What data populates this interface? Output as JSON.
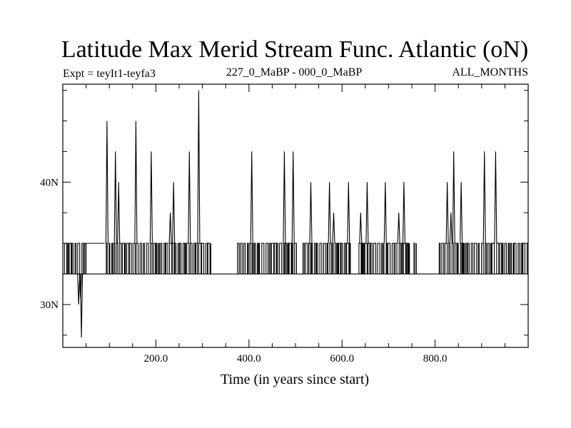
{
  "chart_data": {
    "type": "line",
    "title": "Latitude Max Merid Stream Func. Atlantic (oN)",
    "subtitle_left": "Expt = teyIt1-teyfa3",
    "subtitle_center": "227_0_MaBP - 000_0_MaBP",
    "subtitle_right": "ALL_MONTHS",
    "xlabel": "Time (in years since start)",
    "ylabel": "",
    "xlim": [
      0,
      1000
    ],
    "ylim": [
      26.5,
      48
    ],
    "x_ticks": [
      {
        "value": 200,
        "label": "200.0"
      },
      {
        "value": 400,
        "label": "400.0"
      },
      {
        "value": 600,
        "label": "600.0"
      },
      {
        "value": 800,
        "label": "800.0"
      }
    ],
    "y_ticks": [
      {
        "value": 30,
        "label": "30N"
      },
      {
        "value": 40,
        "label": "40N"
      }
    ],
    "levels": {
      "low": 32.5,
      "high": 35.0
    },
    "spikes": [
      {
        "x": 34,
        "y": 30.0
      },
      {
        "x": 38,
        "y": 30.5
      },
      {
        "x": 40,
        "y": 27.3
      },
      {
        "x": 95,
        "y": 45.0
      },
      {
        "x": 113,
        "y": 42.5
      },
      {
        "x": 120,
        "y": 40.0
      },
      {
        "x": 157,
        "y": 45.0
      },
      {
        "x": 190,
        "y": 42.5
      },
      {
        "x": 231,
        "y": 37.5
      },
      {
        "x": 238,
        "y": 40.0
      },
      {
        "x": 272,
        "y": 42.5
      },
      {
        "x": 292,
        "y": 47.5
      },
      {
        "x": 406,
        "y": 42.5
      },
      {
        "x": 476,
        "y": 42.5
      },
      {
        "x": 495,
        "y": 42.5
      },
      {
        "x": 533,
        "y": 40.0
      },
      {
        "x": 573,
        "y": 40.0
      },
      {
        "x": 582,
        "y": 37.5
      },
      {
        "x": 614,
        "y": 40.0
      },
      {
        "x": 640,
        "y": 37.5
      },
      {
        "x": 654,
        "y": 40.0
      },
      {
        "x": 693,
        "y": 40.0
      },
      {
        "x": 722,
        "y": 37.5
      },
      {
        "x": 733,
        "y": 40.0
      },
      {
        "x": 826,
        "y": 40.0
      },
      {
        "x": 834,
        "y": 37.5
      },
      {
        "x": 840,
        "y": 42.5
      },
      {
        "x": 856,
        "y": 40.0
      },
      {
        "x": 906,
        "y": 42.5
      },
      {
        "x": 930,
        "y": 42.5
      }
    ],
    "oscillation_segments": [
      {
        "x_start": 0,
        "x_end": 50
      },
      {
        "x_start": 90,
        "x_end": 318
      },
      {
        "x_start": 372,
        "x_end": 502
      },
      {
        "x_start": 512,
        "x_end": 618
      },
      {
        "x_start": 633,
        "x_end": 745
      },
      {
        "x_start": 753,
        "x_end": 760
      },
      {
        "x_start": 806,
        "x_end": 1000
      }
    ],
    "high_plateaus": [
      {
        "x_start": 50,
        "x_end": 90
      }
    ]
  }
}
